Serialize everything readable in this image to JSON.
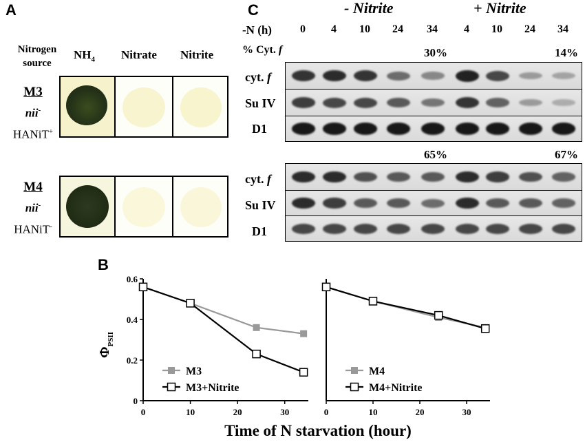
{
  "panelA": {
    "letter": "A",
    "header": {
      "source_line1": "Nitrogen",
      "source_line2": "source",
      "nh4": "NH",
      "nh4_sub": "4",
      "nitrate": "Nitrate",
      "nitrite": "Nitrite"
    },
    "strains": [
      {
        "name": "M3",
        "allele": "nii",
        "allele_sup": "-",
        "marker": "HANiT",
        "marker_sup": "+"
      },
      {
        "name": "M4",
        "allele": "nii",
        "allele_sup": "-",
        "marker": "HANiT",
        "marker_sup": "-"
      }
    ]
  },
  "panelC": {
    "letter": "C",
    "minus_label": "- Nitrite",
    "plus_label": "+ Nitrite",
    "time_label": "-N (h)",
    "time_points": [
      "0",
      "4",
      "10",
      "24",
      "34",
      "4",
      "10",
      "24",
      "34"
    ],
    "pct_label": "% Cyt.",
    "pct_label_italic": "f",
    "blot1": {
      "pct_minus": "30%",
      "pct_plus": "14%"
    },
    "blot2": {
      "pct_minus": "65%",
      "pct_plus": "67%"
    },
    "row_labels": {
      "cytf": "cyt.",
      "cytf_italic": "f",
      "suiv": "Su IV",
      "d1": "D1"
    },
    "blot1_band_intensity": {
      "cytf": [
        0.8,
        0.85,
        0.8,
        0.5,
        0.35,
        0.9,
        0.7,
        0.25,
        0.2
      ],
      "suiv": [
        0.75,
        0.7,
        0.7,
        0.6,
        0.45,
        0.8,
        0.55,
        0.25,
        0.15
      ],
      "d1": [
        0.95,
        0.95,
        0.95,
        0.95,
        0.95,
        0.95,
        0.95,
        0.95,
        0.95
      ]
    },
    "blot2_band_intensity": {
      "cytf": [
        0.85,
        0.85,
        0.65,
        0.6,
        0.6,
        0.85,
        0.75,
        0.65,
        0.55
      ],
      "suiv": [
        0.85,
        0.75,
        0.6,
        0.6,
        0.5,
        0.85,
        0.6,
        0.6,
        0.55
      ],
      "d1": [
        0.7,
        0.7,
        0.7,
        0.7,
        0.7,
        0.7,
        0.7,
        0.7,
        0.7
      ]
    }
  },
  "panelB": {
    "letter": "B",
    "xlabel": "Time of N starvation (hour)",
    "ylabel": "Φ",
    "ylabel_sub": "PSII"
  },
  "chart_data": [
    {
      "type": "line",
      "xlim": [
        0,
        35
      ],
      "ylim": [
        0,
        0.6
      ],
      "x_ticks": [
        "0",
        "10",
        "20",
        "30"
      ],
      "y_ticks": [
        "0",
        "0.2",
        "0.4",
        "0.6"
      ],
      "legend_position": "bottom-left",
      "series": [
        {
          "name": "M3",
          "marker": "filled-square",
          "color": "#999999",
          "x": [
            0,
            10,
            24,
            34
          ],
          "y": [
            0.56,
            0.48,
            0.36,
            0.33
          ]
        },
        {
          "name": "M3+Nitrite",
          "marker": "open-square",
          "color": "#000000",
          "x": [
            0,
            10,
            24,
            34
          ],
          "y": [
            0.56,
            0.48,
            0.23,
            0.14
          ]
        }
      ]
    },
    {
      "type": "line",
      "xlim": [
        0,
        35
      ],
      "ylim": [
        0,
        0.6
      ],
      "x_ticks": [
        "0",
        "10",
        "20",
        "30"
      ],
      "legend_position": "bottom-left",
      "series": [
        {
          "name": "M4",
          "marker": "filled-square",
          "color": "#999999",
          "x": [
            0,
            10,
            24,
            34
          ],
          "y": [
            0.56,
            0.49,
            0.41,
            0.36
          ]
        },
        {
          "name": "M4+Nitrite",
          "marker": "open-square",
          "color": "#000000",
          "x": [
            0,
            10,
            24,
            34
          ],
          "y": [
            0.56,
            0.49,
            0.42,
            0.355
          ]
        }
      ]
    }
  ]
}
